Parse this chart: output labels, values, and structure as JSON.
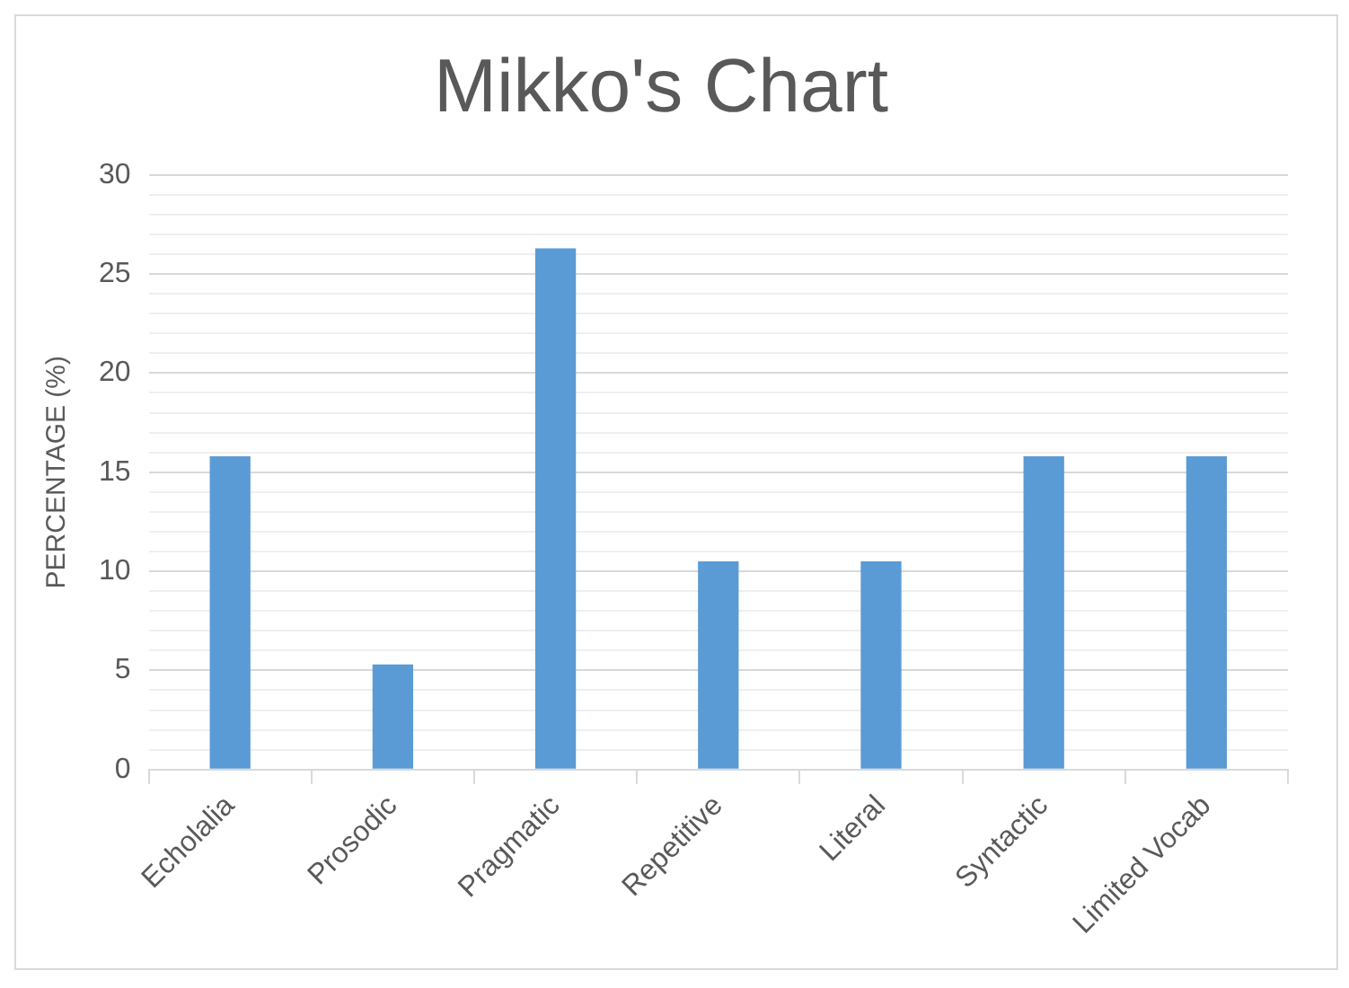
{
  "chart_data": {
    "type": "bar",
    "title": "Mikko's Chart",
    "ylabel": "PERCENTAGE (%)",
    "categories": [
      "Echolalia",
      "Prosodic",
      "Pragmatic",
      "Repetitive",
      "Literal",
      "Syntactic",
      "Limited Vocab"
    ],
    "values": [
      15.8,
      5.3,
      26.3,
      10.5,
      10.5,
      15.8,
      15.8
    ],
    "color": "#5b9bd5",
    "ylim": [
      0,
      30
    ],
    "yticks": [
      0,
      {
        "value": 1,
        "label": null
      },
      {
        "value": 2,
        "label": null
      },
      {
        "value": 3,
        "label": null
      },
      {
        "value": 4,
        "label": null
      },
      5,
      {
        "value": 6,
        "label": null
      },
      {
        "value": 7,
        "label": null
      },
      {
        "value": 8,
        "label": null
      },
      {
        "value": 9,
        "label": null
      },
      10,
      {
        "value": 11,
        "label": null
      },
      {
        "value": 12,
        "label": null
      },
      {
        "value": 13,
        "label": null
      },
      {
        "value": 14,
        "label": null
      },
      15,
      {
        "value": 16,
        "label": null
      },
      {
        "value": 17,
        "label": null
      },
      {
        "value": 18,
        "label": null
      },
      {
        "value": 19,
        "label": null
      },
      20,
      {
        "value": 21,
        "label": null
      },
      {
        "value": 22,
        "label": null
      },
      {
        "value": 23,
        "label": null
      },
      {
        "value": 24,
        "label": null
      },
      25,
      {
        "value": 26,
        "label": null
      },
      {
        "value": 27,
        "label": null
      },
      {
        "value": 28,
        "label": null
      },
      {
        "value": 29,
        "label": null
      },
      30
    ],
    "grid": true,
    "legend": false
  }
}
